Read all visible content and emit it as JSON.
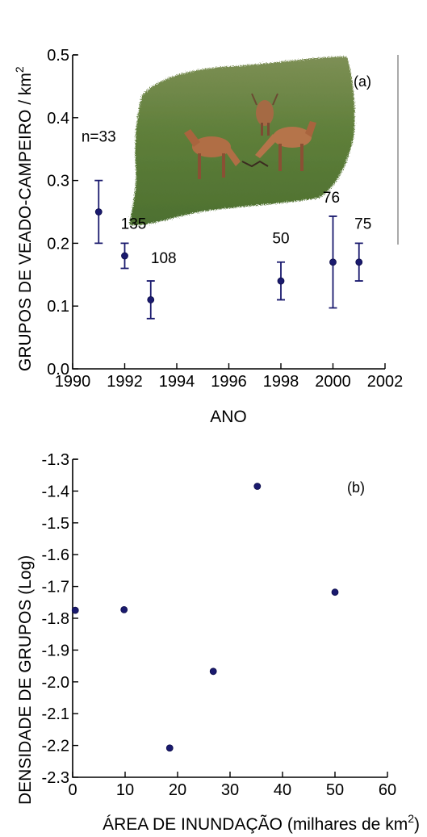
{
  "colors": {
    "marker": "#1a1a6e",
    "axis": "#000000",
    "photo_grass": "#5e7f3c"
  },
  "chart_data": [
    {
      "type": "scatter",
      "panel_label": "(a)",
      "xlabel": "ANO",
      "ylabel": "GRUPOS DE VEADO-CAMPEIRO / km",
      "ylabel_sup": "2",
      "xlim": [
        1990,
        2002
      ],
      "ylim": [
        0.0,
        0.5
      ],
      "xticks": [
        1990,
        1992,
        1994,
        1996,
        1998,
        2000,
        2002
      ],
      "yticks": [
        0.0,
        0.1,
        0.2,
        0.3,
        0.4,
        0.5
      ],
      "ytick_labels": [
        "0.0",
        "0.1",
        "0.2",
        "0.3",
        "0.4",
        "0.5"
      ],
      "points": [
        {
          "x": 1991,
          "y": 0.25,
          "err_low": 0.2,
          "err_high": 0.3,
          "label": "n=33"
        },
        {
          "x": 1992,
          "y": 0.18,
          "err_low": 0.16,
          "err_high": 0.2,
          "label": "135"
        },
        {
          "x": 1993,
          "y": 0.11,
          "err_low": 0.08,
          "err_high": 0.14,
          "label": "108"
        },
        {
          "x": 1998,
          "y": 0.14,
          "err_low": 0.11,
          "err_high": 0.17,
          "label": "50"
        },
        {
          "x": 2000,
          "y": 0.17,
          "err_low": 0.097,
          "err_high": 0.243,
          "label": "76"
        },
        {
          "x": 2001,
          "y": 0.17,
          "err_low": 0.14,
          "err_high": 0.2,
          "label": "75"
        }
      ],
      "inset_image": "photo of pampas deer grazing on grassland"
    },
    {
      "type": "scatter",
      "panel_label": "(b)",
      "xlabel": "ÁREA DE INUNDAÇÃO (milhares de km",
      "xlabel_sup": "2",
      "xlabel_end": ")",
      "ylabel": "DENSIDADE DE GRUPOS (Log)",
      "xlim": [
        0,
        60
      ],
      "ylim": [
        -2.3,
        -1.3
      ],
      "xticks": [
        0,
        10,
        20,
        30,
        40,
        50,
        60
      ],
      "yticks": [
        -2.3,
        -2.2,
        -2.1,
        -2.0,
        -1.9,
        -1.8,
        -1.7,
        -1.6,
        -1.5,
        -1.4,
        -1.3
      ],
      "ytick_labels": [
        "-2.3",
        "-2.2",
        "-2.1",
        "-2.0",
        "-1.9",
        "-1.8",
        "-1.7",
        "-1.6",
        "-1.5",
        "-1.4",
        "-1.3"
      ],
      "points": [
        {
          "x": 0.5,
          "y": -1.775
        },
        {
          "x": 9.8,
          "y": -1.773
        },
        {
          "x": 18.5,
          "y": -2.208
        },
        {
          "x": 26.8,
          "y": -1.967
        },
        {
          "x": 35.2,
          "y": -1.385
        },
        {
          "x": 50.0,
          "y": -1.718
        }
      ]
    }
  ]
}
